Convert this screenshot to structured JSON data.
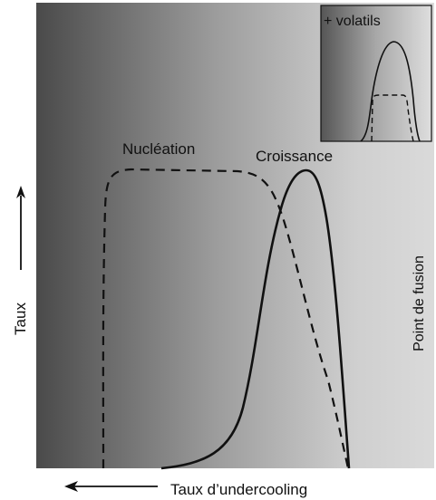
{
  "diagram": {
    "y_axis_label": "Taux",
    "x_axis_label": "Taux d’undercooling",
    "curve_labels": {
      "nucleation": "Nucléation",
      "growth": "Croissance"
    },
    "boundary_label": "Point de fusion",
    "inset_label": "+ volatils"
  },
  "colors": {
    "gradient_dark": "#4a4a4a",
    "gradient_mid": "#9c9c9c",
    "gradient_light": "#dadada",
    "curve": "#111111"
  }
}
